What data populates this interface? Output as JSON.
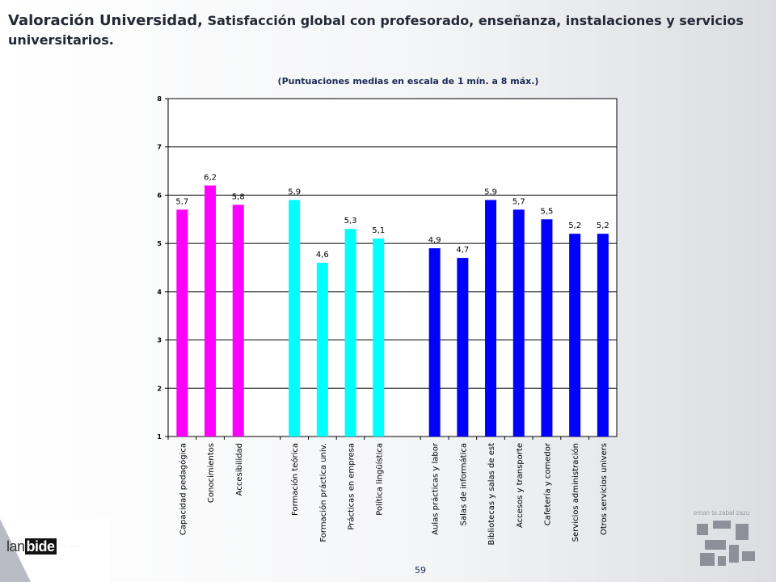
{
  "header": {
    "title_lead": "Valoración Universidad,",
    "title_rest": " Satisfacción global con  profesorado, enseñanza, instalaciones y servicios universitarios.",
    "subtitle": "(Puntuaciones medias en escala de 1 mín. a 8 máx.)"
  },
  "footer": {
    "page_number": "59",
    "logo_left_light": "lan",
    "logo_left_bold": "bide",
    "logo_left_tag": "····· ······",
    "logo_right_motto": "eman ta zabal zazu"
  },
  "colors": {
    "profesorado": "#ff00ff",
    "ensenanza": "#00ffff",
    "instalaciones": "#0000ff",
    "title": "#222a36",
    "accent_text": "#1a2a55"
  },
  "chart_data": {
    "type": "bar",
    "ylim": [
      1,
      8
    ],
    "yticks": [
      "1",
      "2",
      "3",
      "4",
      "5",
      "6",
      "7",
      "8"
    ],
    "grid": true,
    "legend": "none",
    "groups": [
      {
        "color": "#ff00ff",
        "categories": [
          "Capacidad pedagógica",
          "Conocimientos",
          "Accesibilidad"
        ],
        "values": [
          5.7,
          6.2,
          5.8
        ],
        "labels": [
          "5,7",
          "6,2",
          "5,8"
        ]
      },
      {
        "color": "#00ffff",
        "categories": [
          "Formación teórica",
          "Formación práctica univ.",
          "Prácticas en empresa",
          "Política lingüística"
        ],
        "values": [
          5.9,
          4.6,
          5.3,
          5.1
        ],
        "labels": [
          "5,9",
          "4,6",
          "5,3",
          "5,1"
        ]
      },
      {
        "color": "#0000ff",
        "categories": [
          "Aulas prácticas y labor",
          "Salas de informática",
          "Bibliotecas y salas de est",
          "Accesos y transporte",
          "Cafetería y comedor",
          "Servicios administración",
          "Otros servicios univers"
        ],
        "values": [
          4.9,
          4.7,
          5.9,
          5.7,
          5.5,
          5.2,
          5.2
        ],
        "labels": [
          "4,9",
          "4,7",
          "5,9",
          "5,7",
          "5,5",
          "5,2",
          "5,2"
        ]
      }
    ]
  }
}
